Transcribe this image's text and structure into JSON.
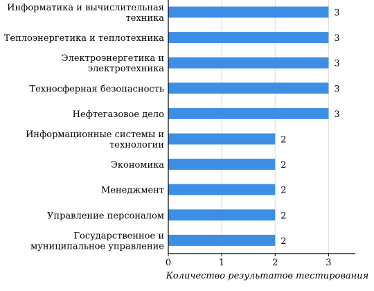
{
  "chart_data": {
    "type": "bar",
    "orientation": "horizontal",
    "categories": [
      "Информатика и вычислительная техника",
      "Теплоэнергетика и теплотехника",
      "Электроэнергетика и электротехника",
      "Техносферная безопасность",
      "Нефтегазовое дело",
      "Информационные системы и технологии",
      "Экономика",
      "Менеджмент",
      "Управление персоналом",
      "Государственное и муниципальное управление"
    ],
    "category_lines": [
      [
        "Информатика и вычислительная",
        "техника"
      ],
      [
        "Теплоэнергетика и теплотехника"
      ],
      [
        "Электроэнергетика и",
        "электротехника"
      ],
      [
        "Техносферная безопасность"
      ],
      [
        "Нефтегазовое дело"
      ],
      [
        "Информационные системы и",
        "технологии"
      ],
      [
        "Экономика"
      ],
      [
        "Менеджмент"
      ],
      [
        "Управление персоналом"
      ],
      [
        "Государственное и",
        "муниципальное управление"
      ]
    ],
    "values": [
      3,
      3,
      3,
      3,
      3,
      2,
      2,
      2,
      2,
      2
    ],
    "data_labels": [
      "3",
      "3",
      "3",
      "3",
      "3",
      "2",
      "2",
      "2",
      "2",
      "2"
    ],
    "xlabel": "Количество результатов тестирования",
    "ylabel": "",
    "title": "",
    "xlim": [
      0,
      3.5
    ],
    "xticks": [
      0,
      1,
      2,
      3
    ],
    "xtick_labels": [
      "0",
      "1",
      "2",
      "3"
    ],
    "grid": "vertical",
    "legend": "none",
    "colors": {
      "bar": "#3d8fe6",
      "grid": "#dddddd",
      "axis": "#000000"
    }
  }
}
